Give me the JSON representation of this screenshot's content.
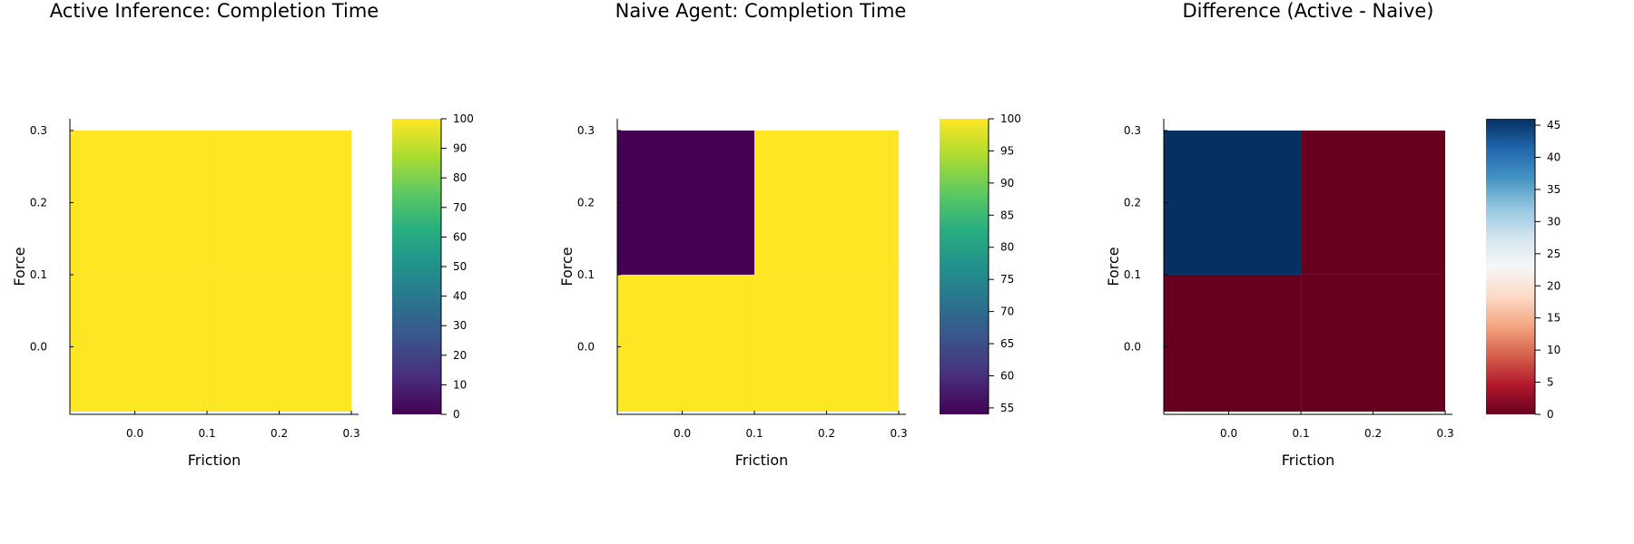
{
  "chart_data": [
    {
      "type": "heatmap",
      "title": "Active Inference: Completion Time",
      "xlabel": "Friction",
      "ylabel": "Force",
      "x_ticks": [
        "0.0",
        "0.1",
        "0.2",
        "0.3"
      ],
      "y_ticks": [
        "0.0",
        "0.1",
        "0.2",
        "0.3"
      ],
      "x_cells": [
        0.0,
        0.2
      ],
      "y_cells": [
        0.0,
        0.2
      ],
      "values": [
        [
          100,
          100
        ],
        [
          100,
          100
        ]
      ],
      "colormap": "viridis",
      "clim": [
        0,
        100
      ],
      "colorbar_ticks": [
        "0",
        "10",
        "20",
        "30",
        "40",
        "50",
        "60",
        "70",
        "80",
        "90",
        "100"
      ]
    },
    {
      "type": "heatmap",
      "title": "Naive Agent: Completion Time",
      "xlabel": "Friction",
      "ylabel": "Force",
      "x_ticks": [
        "0.0",
        "0.1",
        "0.2",
        "0.3"
      ],
      "y_ticks": [
        "0.0",
        "0.1",
        "0.2",
        "0.3"
      ],
      "x_cells": [
        0.0,
        0.2
      ],
      "y_cells": [
        0.0,
        0.2
      ],
      "values": [
        [
          100,
          100
        ],
        [
          54,
          100
        ]
      ],
      "colormap": "viridis",
      "clim": [
        54,
        100
      ],
      "colorbar_ticks": [
        "55",
        "60",
        "65",
        "70",
        "75",
        "80",
        "85",
        "90",
        "95",
        "100"
      ]
    },
    {
      "type": "heatmap",
      "title": "Difference (Active - Naive)",
      "xlabel": "Friction",
      "ylabel": "Force",
      "x_ticks": [
        "0.0",
        "0.1",
        "0.2",
        "0.3"
      ],
      "y_ticks": [
        "0.0",
        "0.1",
        "0.2",
        "0.3"
      ],
      "x_cells": [
        0.0,
        0.2
      ],
      "y_cells": [
        0.0,
        0.2
      ],
      "values": [
        [
          0,
          0
        ],
        [
          46,
          0
        ]
      ],
      "colormap": "RdBu",
      "clim": [
        0,
        46
      ],
      "colorbar_ticks": [
        "0",
        "5",
        "10",
        "15",
        "20",
        "25",
        "30",
        "35",
        "40",
        "45"
      ]
    }
  ]
}
